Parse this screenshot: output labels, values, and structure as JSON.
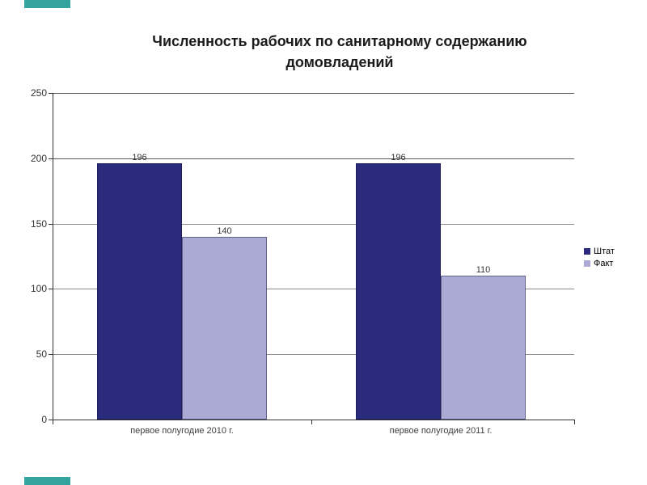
{
  "slide": {
    "accent_color": "#33A3A0"
  },
  "chart_data": {
    "type": "bar",
    "title": "Численность рабочих по санитарному содержанию домовладений",
    "categories": [
      "первое полугодие 2010 г.",
      "первое полугодие 2011 г."
    ],
    "series": [
      {
        "name": "Штат",
        "color": "#2B2B7E",
        "border_color": "#1E1E5A",
        "values": [
          196,
          196
        ]
      },
      {
        "name": "Факт",
        "color": "#AAAAD4",
        "border_color": "#62628C",
        "values": [
          140,
          110
        ]
      }
    ],
    "ylim": [
      0,
      250
    ],
    "yticks": [
      0,
      50,
      100,
      150,
      200,
      250
    ],
    "grid": true,
    "data_labels": true,
    "legend_position": "right",
    "colors": {
      "gridline": "#8C8C8C",
      "gridline_major": "#595959",
      "axis": "#333333",
      "value_label": "#333333",
      "category_label": "#404040"
    }
  }
}
